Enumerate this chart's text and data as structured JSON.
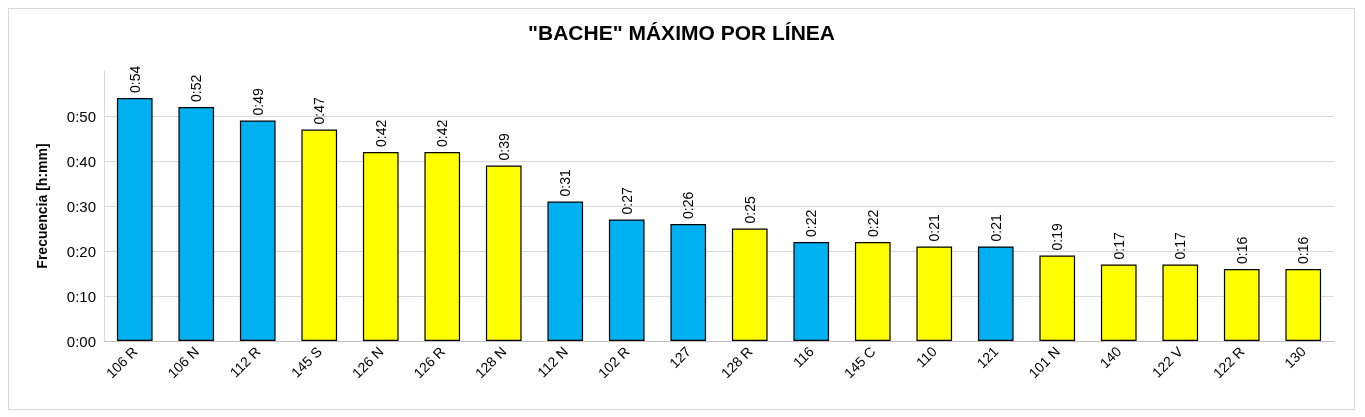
{
  "chart_data": {
    "type": "bar",
    "title": "\"BACHE\" MÁXIMO POR LÍNEA",
    "ylabel": "Frecuencia [h:mm]",
    "categories": [
      "106 R",
      "106 N",
      "112 R",
      "145 S",
      "126 N",
      "126 R",
      "128 N",
      "112 N",
      "102 R",
      "127",
      "128 R",
      "116",
      "145 C",
      "110",
      "121",
      "101 N",
      "140",
      "122 V",
      "122 R",
      "130"
    ],
    "values": [
      54,
      52,
      49,
      47,
      42,
      42,
      39,
      31,
      27,
      26,
      25,
      22,
      22,
      21,
      21,
      19,
      17,
      17,
      16,
      16
    ],
    "colors": [
      "#00b0f0",
      "#00b0f0",
      "#00b0f0",
      "#ffff00",
      "#ffff00",
      "#ffff00",
      "#ffff00",
      "#00b0f0",
      "#00b0f0",
      "#00b0f0",
      "#ffff00",
      "#00b0f0",
      "#ffff00",
      "#ffff00",
      "#00b0f0",
      "#ffff00",
      "#ffff00",
      "#ffff00",
      "#ffff00",
      "#ffff00"
    ],
    "value_labels": [
      "0:54",
      "0:52",
      "0:49",
      "0:47",
      "0:42",
      "0:42",
      "0:39",
      "0:31",
      "0:27",
      "0:26",
      "0:25",
      "0:22",
      "0:22",
      "0:21",
      "0:21",
      "0:19",
      "0:17",
      "0:17",
      "0:16",
      "0:16"
    ],
    "ylim": [
      0,
      60
    ],
    "yticks": [
      {
        "value": 0,
        "label": "0:00"
      },
      {
        "value": 10,
        "label": "0:10"
      },
      {
        "value": 20,
        "label": "0:20"
      },
      {
        "value": 30,
        "label": "0:30"
      },
      {
        "value": 40,
        "label": "0:40"
      },
      {
        "value": 50,
        "label": "0:50"
      }
    ],
    "grid": "y"
  }
}
